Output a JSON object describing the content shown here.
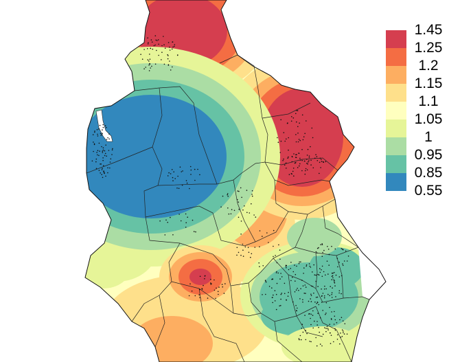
{
  "map": {
    "title": "",
    "bands": [
      {
        "label": "1.45",
        "color": "#D53E4F"
      },
      {
        "label": "1.25",
        "color": "#F46D43"
      },
      {
        "label": "1.2",
        "color": "#FDAE61"
      },
      {
        "label": "1.15",
        "color": "#FEE08B"
      },
      {
        "label": "1.1",
        "color": "#FFFFBF"
      },
      {
        "label": "1.05",
        "color": "#E6F598"
      },
      {
        "label": "1",
        "color": "#ABDDA4"
      },
      {
        "label": "0.95",
        "color": "#66C2A5"
      },
      {
        "label": "0.85",
        "color": "#3288BD"
      },
      {
        "label": "0.55",
        "color": ""
      }
    ],
    "hotspots": [
      {
        "name": "northwest-peak",
        "level": 0
      },
      {
        "name": "northeast-peak",
        "level": 0
      },
      {
        "name": "central-peak",
        "level": 0
      },
      {
        "name": "west-trough",
        "level": 8
      },
      {
        "name": "southeast-trough",
        "level": 7
      }
    ]
  }
}
